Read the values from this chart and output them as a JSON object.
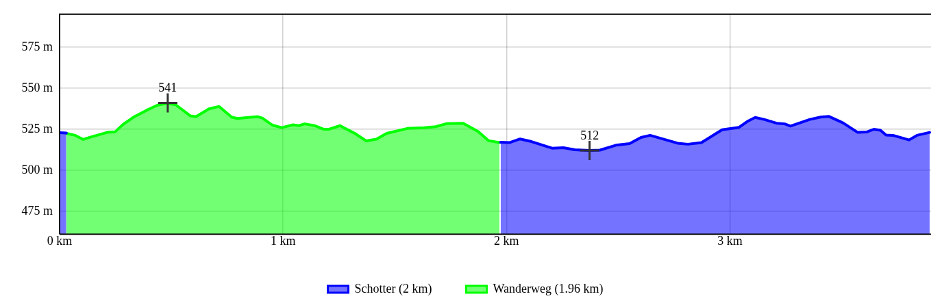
{
  "chart_data": {
    "type": "area",
    "xlim": [
      0,
      3.9
    ],
    "xticks": [
      {
        "value": 0,
        "label": "0 km"
      },
      {
        "value": 1,
        "label": "1 km"
      },
      {
        "value": 2,
        "label": "2 km"
      },
      {
        "value": 3,
        "label": "3 km"
      }
    ],
    "ylim": [
      461,
      595
    ],
    "yticks": [
      {
        "value": 475,
        "label": "475 m"
      },
      {
        "value": 500,
        "label": "500 m"
      },
      {
        "value": 525,
        "label": "525 m"
      },
      {
        "value": 550,
        "label": "550 m"
      },
      {
        "value": 575,
        "label": "575 m"
      }
    ],
    "grid": true,
    "legend": "bottom",
    "annotations": [
      {
        "text": "541",
        "x": 0.484,
        "y": 541
      },
      {
        "text": "512",
        "x": 2.372,
        "y": 512
      }
    ],
    "series": [
      {
        "name": "Schotter (2 km)",
        "color": "#0000ff",
        "x": [
          0,
          0.03,
          1.0,
          1.974,
          2.015,
          2.061,
          2.112,
          2.204,
          2.255,
          2.306,
          2.372,
          2.418,
          2.49,
          2.551,
          2.602,
          2.643,
          2.766,
          2.812,
          2.873,
          2.965,
          3.041,
          3.077,
          3.113,
          3.153,
          3.209,
          3.245,
          3.271,
          3.358,
          3.409,
          3.444,
          3.506,
          3.572,
          3.613,
          3.644,
          3.674,
          3.699,
          3.73,
          3.802,
          3.837,
          3.894
        ],
        "values": [
          522.8,
          522.6,
          null,
          517.0,
          516.8,
          519.0,
          517.4,
          513.4,
          513.7,
          512.4,
          512.0,
          512.2,
          515.2,
          516.2,
          519.9,
          521.2,
          516.4,
          515.8,
          516.8,
          524.6,
          526.1,
          529.6,
          532.1,
          530.9,
          528.6,
          528.2,
          526.8,
          530.9,
          532.4,
          532.7,
          528.8,
          523.0,
          523.3,
          524.9,
          524.3,
          521.4,
          521.2,
          518.4,
          521.2,
          523.0
        ]
      },
      {
        "name": "Wanderweg (1.96 km)",
        "color": "#00ff00",
        "x": [
          0.03,
          0.07,
          0.106,
          0.137,
          0.213,
          0.249,
          0.285,
          0.331,
          0.387,
          0.438,
          0.484,
          0.52,
          0.586,
          0.611,
          0.668,
          0.714,
          0.77,
          0.795,
          0.887,
          0.907,
          0.953,
          0.994,
          1.045,
          1.071,
          1.096,
          1.142,
          1.183,
          1.204,
          1.255,
          1.321,
          1.373,
          1.418,
          1.464,
          1.556,
          1.632,
          1.683,
          1.734,
          1.806,
          1.873,
          1.919,
          1.969
        ],
        "values": [
          522.4,
          521.2,
          518.7,
          520.1,
          523.0,
          523.4,
          528.0,
          532.3,
          536.3,
          539.6,
          540.7,
          539.8,
          533.0,
          532.6,
          537.3,
          538.8,
          532.3,
          531.5,
          532.6,
          531.7,
          527.4,
          525.9,
          527.6,
          527.1,
          528.2,
          527.1,
          524.9,
          524.9,
          527.1,
          522.4,
          517.8,
          518.9,
          522.4,
          525.4,
          525.9,
          526.5,
          528.4,
          528.6,
          523.6,
          518.0,
          516.8
        ]
      }
    ]
  }
}
